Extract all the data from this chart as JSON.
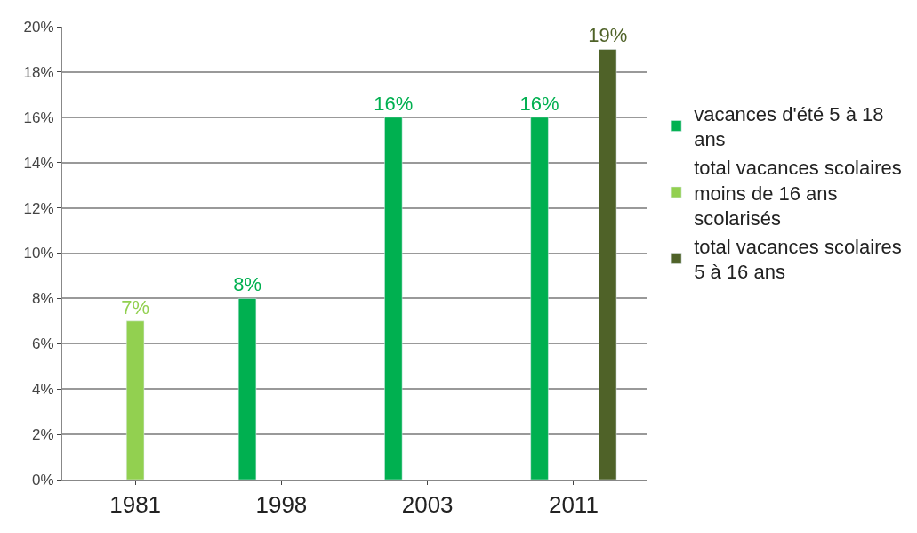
{
  "chart_data": {
    "type": "bar",
    "categories": [
      "1981",
      "1998",
      "2003",
      "2011"
    ],
    "series": [
      {
        "name": "vacances d'été 5 à 18 ans",
        "color": "#00b050",
        "values": [
          null,
          8,
          16,
          16
        ],
        "value_labels": [
          null,
          "8%",
          "16%",
          "16%"
        ]
      },
      {
        "name": "total vacances scolaires moins de 16 ans scolarisés",
        "color": "#92d050",
        "values": [
          7,
          null,
          null,
          null
        ],
        "value_labels": [
          "7%",
          null,
          null,
          null
        ]
      },
      {
        "name": "total vacances scolaires 5 à 16 ans",
        "color": "#4f6228",
        "values": [
          null,
          null,
          null,
          19
        ],
        "value_labels": [
          null,
          null,
          null,
          "19%"
        ]
      }
    ],
    "ylim": [
      0,
      20
    ],
    "yticks": [
      {
        "value": 0,
        "label": "0%"
      },
      {
        "value": 2,
        "label": "2%"
      },
      {
        "value": 4,
        "label": "4%"
      },
      {
        "value": 6,
        "label": "6%"
      },
      {
        "value": 8,
        "label": "8%"
      },
      {
        "value": 10,
        "label": "10%"
      },
      {
        "value": 12,
        "label": "12%"
      },
      {
        "value": 14,
        "label": "14%"
      },
      {
        "value": 16,
        "label": "16%"
      },
      {
        "value": 18,
        "label": "18%"
      },
      {
        "value": 20,
        "label": "20%"
      }
    ],
    "grid": "y",
    "legend": "right"
  }
}
